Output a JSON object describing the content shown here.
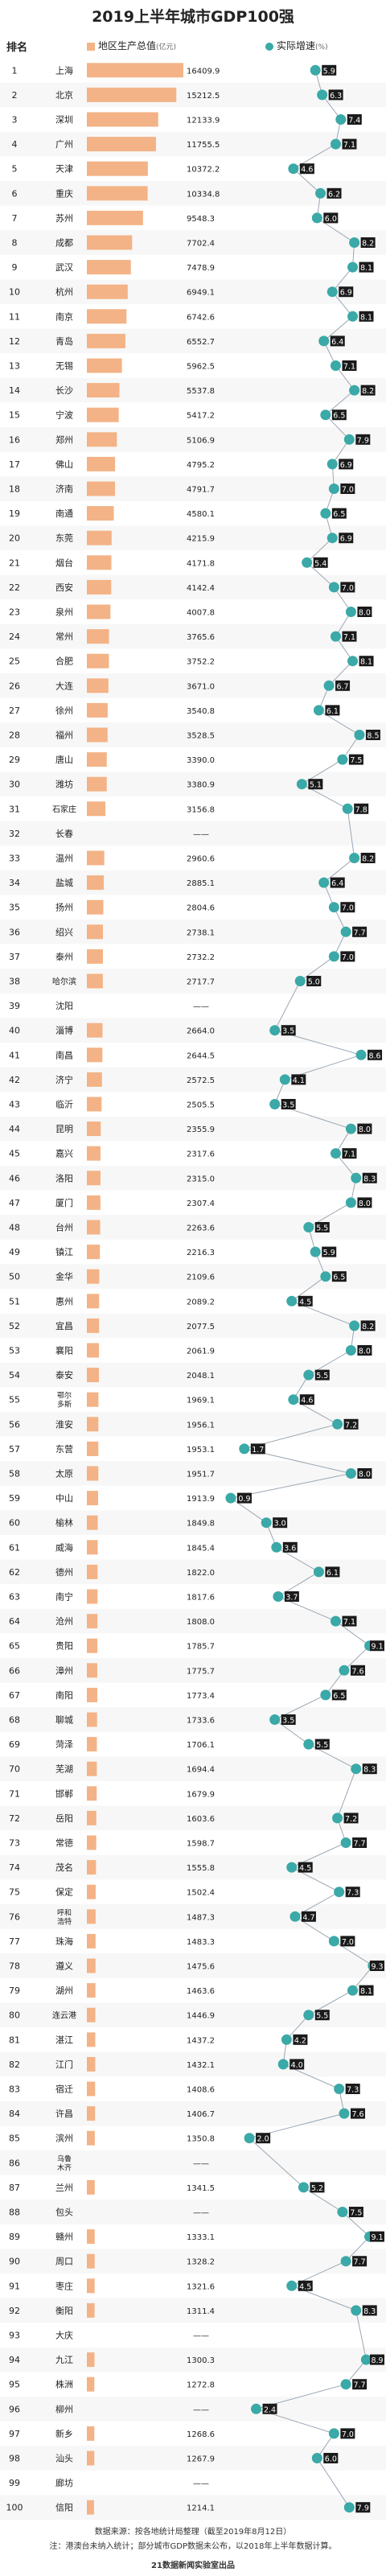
{
  "title": "2019上半年城市GDP100强",
  "header": {
    "rank": "排名",
    "gdp_label": "地区生产总值",
    "gdp_unit": "亿元",
    "growth_label": "实际增速",
    "growth_unit": "%"
  },
  "source_line1": "数据来源：按各地统计局整理（截至2019年8月12日）",
  "source_line2": "注：港澳台未纳入统计；部分城市GDP数据未公布，以2018年上半年数据计算。",
  "footer": "21数据新闻实验室出品",
  "colors": {
    "bar": "#f3b386",
    "growth": "#3aa9a7",
    "label_bg": "#1a1a1a"
  },
  "chart_data": {
    "type": "bar",
    "title": "2019上半年城市GDP100强",
    "xlabel": "",
    "ylabel": "",
    "series": [
      {
        "name": "地区生产总值",
        "unit": "亿元"
      },
      {
        "name": "实际增速",
        "unit": "%"
      }
    ],
    "growth_range": [
      0,
      9.5
    ],
    "rows": [
      {
        "rank": "1",
        "city": "上海",
        "gdp": "16409.9",
        "growth": 5.9
      },
      {
        "rank": "2",
        "city": "北京",
        "gdp": "15212.5",
        "growth": 6.3
      },
      {
        "rank": "3",
        "city": "深圳",
        "gdp": "12133.9",
        "growth": 7.4
      },
      {
        "rank": "4",
        "city": "广州",
        "gdp": "11755.5",
        "growth": 7.1
      },
      {
        "rank": "5",
        "city": "天津",
        "gdp": "10372.2",
        "growth": 4.6
      },
      {
        "rank": "6",
        "city": "重庆",
        "gdp": "10334.8",
        "growth": 6.2
      },
      {
        "rank": "7",
        "city": "苏州",
        "gdp": "9548.3",
        "growth": 6.0
      },
      {
        "rank": "8",
        "city": "成都",
        "gdp": "7702.4",
        "growth": 8.2
      },
      {
        "rank": "9",
        "city": "武汉",
        "gdp": "7478.9",
        "growth": 8.1
      },
      {
        "rank": "10",
        "city": "杭州",
        "gdp": "6949.1",
        "growth": 6.9
      },
      {
        "rank": "11",
        "city": "南京",
        "gdp": "6742.6",
        "growth": 8.1
      },
      {
        "rank": "12",
        "city": "青岛",
        "gdp": "6552.7",
        "growth": 6.4
      },
      {
        "rank": "13",
        "city": "无锡",
        "gdp": "5962.5",
        "growth": 7.1
      },
      {
        "rank": "14",
        "city": "长沙",
        "gdp": "5537.8",
        "growth": 8.2
      },
      {
        "rank": "15",
        "city": "宁波",
        "gdp": "5417.2",
        "growth": 6.5
      },
      {
        "rank": "16",
        "city": "郑州",
        "gdp": "5106.9",
        "growth": 7.9
      },
      {
        "rank": "17",
        "city": "佛山",
        "gdp": "4795.2",
        "growth": 6.9
      },
      {
        "rank": "18",
        "city": "济南",
        "gdp": "4791.7",
        "growth": 7.0
      },
      {
        "rank": "19",
        "city": "南通",
        "gdp": "4580.1",
        "growth": 6.5
      },
      {
        "rank": "20",
        "city": "东莞",
        "gdp": "4215.9",
        "growth": 6.9
      },
      {
        "rank": "21",
        "city": "烟台",
        "gdp": "4171.8",
        "growth": 5.4
      },
      {
        "rank": "22",
        "city": "西安",
        "gdp": "4142.4",
        "growth": 7.0
      },
      {
        "rank": "23",
        "city": "泉州",
        "gdp": "4007.8",
        "growth": 8.0
      },
      {
        "rank": "24",
        "city": "常州",
        "gdp": "3765.6",
        "growth": 7.1
      },
      {
        "rank": "25",
        "city": "合肥",
        "gdp": "3752.2",
        "growth": 8.1
      },
      {
        "rank": "26",
        "city": "大连",
        "gdp": "3671.0",
        "growth": 6.7
      },
      {
        "rank": "27",
        "city": "徐州",
        "gdp": "3540.8",
        "growth": 6.1
      },
      {
        "rank": "28",
        "city": "福州",
        "gdp": "3528.5",
        "growth": 8.5
      },
      {
        "rank": "29",
        "city": "唐山",
        "gdp": "3390.0",
        "growth": 7.5
      },
      {
        "rank": "30",
        "city": "潍坊",
        "gdp": "3380.9",
        "growth": 5.1
      },
      {
        "rank": "31",
        "city": "石家庄",
        "gdp": "3156.8",
        "growth": 7.8
      },
      {
        "rank": "32",
        "city": "长春",
        "gdp": "——",
        "growth": null
      },
      {
        "rank": "33",
        "city": "温州",
        "gdp": "2960.6",
        "growth": 8.2
      },
      {
        "rank": "34",
        "city": "盐城",
        "gdp": "2885.1",
        "growth": 6.4
      },
      {
        "rank": "35",
        "city": "扬州",
        "gdp": "2804.6",
        "growth": 7.0
      },
      {
        "rank": "36",
        "city": "绍兴",
        "gdp": "2738.1",
        "growth": 7.7
      },
      {
        "rank": "37",
        "city": "泰州",
        "gdp": "2732.2",
        "growth": 7.0
      },
      {
        "rank": "38",
        "city": "哈尔滨",
        "gdp": "2717.7",
        "growth": 5.0
      },
      {
        "rank": "39",
        "city": "沈阳",
        "gdp": "——",
        "growth": null
      },
      {
        "rank": "40",
        "city": "淄博",
        "gdp": "2664.0",
        "growth": 3.5
      },
      {
        "rank": "41",
        "city": "南昌",
        "gdp": "2644.5",
        "growth": 8.6
      },
      {
        "rank": "42",
        "city": "济宁",
        "gdp": "2572.5",
        "growth": 4.1
      },
      {
        "rank": "43",
        "city": "临沂",
        "gdp": "2505.5",
        "growth": 3.5
      },
      {
        "rank": "44",
        "city": "昆明",
        "gdp": "2355.9",
        "growth": 8.0
      },
      {
        "rank": "45",
        "city": "嘉兴",
        "gdp": "2317.6",
        "growth": 7.1
      },
      {
        "rank": "46",
        "city": "洛阳",
        "gdp": "2315.0",
        "growth": 8.3
      },
      {
        "rank": "47",
        "city": "厦门",
        "gdp": "2307.4",
        "growth": 8.0
      },
      {
        "rank": "48",
        "city": "台州",
        "gdp": "2263.6",
        "growth": 5.5
      },
      {
        "rank": "49",
        "city": "镇江",
        "gdp": "2216.3",
        "growth": 5.9
      },
      {
        "rank": "50",
        "city": "金华",
        "gdp": "2109.6",
        "growth": 6.5
      },
      {
        "rank": "51",
        "city": "惠州",
        "gdp": "2089.2",
        "growth": 4.5
      },
      {
        "rank": "52",
        "city": "宜昌",
        "gdp": "2077.5",
        "growth": 8.2
      },
      {
        "rank": "53",
        "city": "襄阳",
        "gdp": "2061.9",
        "growth": 8.0
      },
      {
        "rank": "54",
        "city": "泰安",
        "gdp": "2048.1",
        "growth": 5.5
      },
      {
        "rank": "55",
        "city": "鄂尔多斯",
        "gdp": "1969.1",
        "growth": 4.6
      },
      {
        "rank": "56",
        "city": "淮安",
        "gdp": "1956.1",
        "growth": 7.2
      },
      {
        "rank": "57",
        "city": "东营",
        "gdp": "1953.1",
        "growth": 1.7
      },
      {
        "rank": "58",
        "city": "太原",
        "gdp": "1951.7",
        "growth": 8.0
      },
      {
        "rank": "59",
        "city": "中山",
        "gdp": "1913.9",
        "growth": 0.9
      },
      {
        "rank": "60",
        "city": "榆林",
        "gdp": "1849.8",
        "growth": 3.0
      },
      {
        "rank": "61",
        "city": "威海",
        "gdp": "1845.4",
        "growth": 3.6
      },
      {
        "rank": "62",
        "city": "德州",
        "gdp": "1822.0",
        "growth": 6.1
      },
      {
        "rank": "63",
        "city": "南宁",
        "gdp": "1817.6",
        "growth": 3.7
      },
      {
        "rank": "64",
        "city": "沧州",
        "gdp": "1808.0",
        "growth": 7.1
      },
      {
        "rank": "65",
        "city": "贵阳",
        "gdp": "1785.7",
        "growth": 9.1
      },
      {
        "rank": "66",
        "city": "漳州",
        "gdp": "1775.7",
        "growth": 7.6
      },
      {
        "rank": "67",
        "city": "南阳",
        "gdp": "1773.4",
        "growth": 6.5
      },
      {
        "rank": "68",
        "city": "聊城",
        "gdp": "1733.6",
        "growth": 3.5
      },
      {
        "rank": "69",
        "city": "菏泽",
        "gdp": "1706.1",
        "growth": 5.5
      },
      {
        "rank": "70",
        "city": "芜湖",
        "gdp": "1694.4",
        "growth": 8.3
      },
      {
        "rank": "71",
        "city": "邯郸",
        "gdp": "1679.9",
        "growth": null
      },
      {
        "rank": "72",
        "city": "岳阳",
        "gdp": "1603.6",
        "growth": 7.2
      },
      {
        "rank": "73",
        "city": "常德",
        "gdp": "1598.7",
        "growth": 7.7
      },
      {
        "rank": "74",
        "city": "茂名",
        "gdp": "1555.8",
        "growth": 4.5
      },
      {
        "rank": "75",
        "city": "保定",
        "gdp": "1502.4",
        "growth": 7.3
      },
      {
        "rank": "76",
        "city": "呼和浩特",
        "gdp": "1487.3",
        "growth": 4.7
      },
      {
        "rank": "77",
        "city": "珠海",
        "gdp": "1483.3",
        "growth": 7.0
      },
      {
        "rank": "78",
        "city": "遵义",
        "gdp": "1475.6",
        "growth": 9.3
      },
      {
        "rank": "79",
        "city": "湖州",
        "gdp": "1463.6",
        "growth": 8.1
      },
      {
        "rank": "80",
        "city": "连云港",
        "gdp": "1446.9",
        "growth": 5.5
      },
      {
        "rank": "81",
        "city": "湛江",
        "gdp": "1437.2",
        "growth": 4.2
      },
      {
        "rank": "82",
        "city": "江门",
        "gdp": "1432.1",
        "growth": 4.0
      },
      {
        "rank": "83",
        "city": "宿迁",
        "gdp": "1408.6",
        "growth": 7.3
      },
      {
        "rank": "84",
        "city": "许昌",
        "gdp": "1406.7",
        "growth": 7.6
      },
      {
        "rank": "85",
        "city": "滨州",
        "gdp": "1350.8",
        "growth": 2.0
      },
      {
        "rank": "86",
        "city": "乌鲁木齐",
        "gdp": "——",
        "growth": null
      },
      {
        "rank": "87",
        "city": "兰州",
        "gdp": "1341.5",
        "growth": 5.2
      },
      {
        "rank": "88",
        "city": "包头",
        "gdp": "——",
        "growth": 7.5
      },
      {
        "rank": "89",
        "city": "赣州",
        "gdp": "1333.1",
        "growth": 9.1
      },
      {
        "rank": "90",
        "city": "周口",
        "gdp": "1328.2",
        "growth": 7.7
      },
      {
        "rank": "91",
        "city": "枣庄",
        "gdp": "1321.6",
        "growth": 4.5
      },
      {
        "rank": "92",
        "city": "衡阳",
        "gdp": "1311.4",
        "growth": 8.3
      },
      {
        "rank": "93",
        "city": "大庆",
        "gdp": "——",
        "growth": null
      },
      {
        "rank": "94",
        "city": "九江",
        "gdp": "1300.3",
        "growth": 8.9
      },
      {
        "rank": "95",
        "city": "株洲",
        "gdp": "1272.8",
        "growth": 7.7
      },
      {
        "rank": "96",
        "city": "柳州",
        "gdp": "——",
        "growth": 2.4
      },
      {
        "rank": "97",
        "city": "新乡",
        "gdp": "1268.6",
        "growth": 7.0
      },
      {
        "rank": "98",
        "city": "汕头",
        "gdp": "1267.9",
        "growth": 6.0
      },
      {
        "rank": "99",
        "city": "廊坊",
        "gdp": "——",
        "growth": null
      },
      {
        "rank": "100",
        "city": "信阳",
        "gdp": "1214.1",
        "growth": 7.9
      }
    ]
  }
}
